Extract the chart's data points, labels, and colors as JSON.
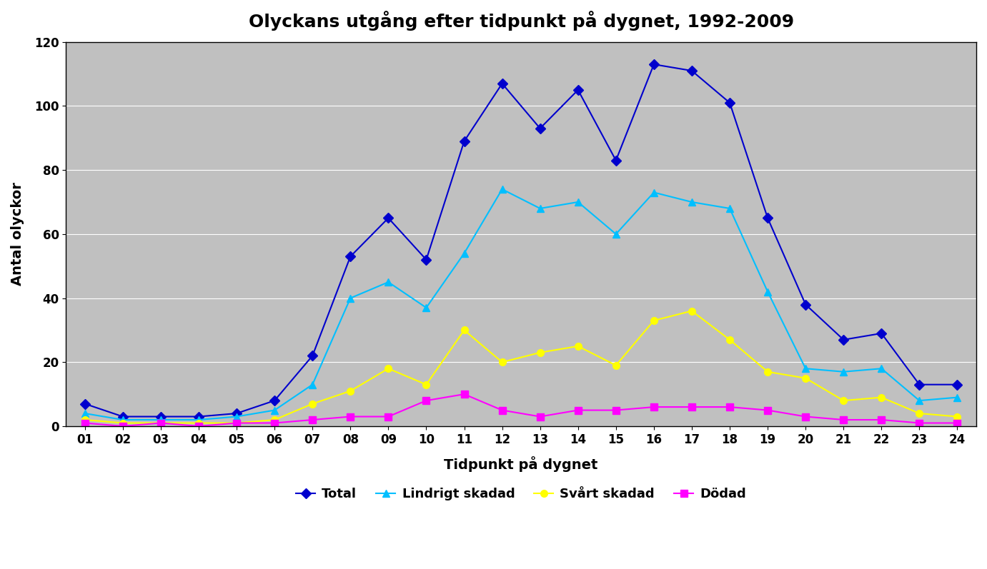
{
  "title": "Olyckans utgång efter tidpunkt på dygnet, 1992-2009",
  "xlabel": "Tidpunkt på dygnet",
  "ylabel": "Antal olyckor",
  "x_labels": [
    "01",
    "02",
    "03",
    "04",
    "05",
    "06",
    "07",
    "08",
    "09",
    "10",
    "11",
    "12",
    "13",
    "14",
    "15",
    "16",
    "17",
    "18",
    "19",
    "20",
    "21",
    "22",
    "23",
    "24"
  ],
  "total": [
    7,
    3,
    3,
    3,
    4,
    8,
    22,
    53,
    65,
    52,
    89,
    107,
    93,
    105,
    83,
    113,
    111,
    101,
    65,
    38,
    27,
    29,
    13,
    13
  ],
  "lindrigt": [
    4,
    2,
    2,
    2,
    3,
    5,
    13,
    40,
    45,
    37,
    54,
    74,
    68,
    70,
    60,
    73,
    70,
    68,
    42,
    18,
    17,
    18,
    8,
    9
  ],
  "svart": [
    2,
    1,
    1,
    1,
    1,
    2,
    7,
    11,
    18,
    13,
    30,
    20,
    23,
    25,
    19,
    33,
    36,
    27,
    17,
    15,
    8,
    9,
    4,
    3
  ],
  "dodad": [
    1,
    0,
    1,
    0,
    1,
    1,
    2,
    3,
    3,
    8,
    10,
    5,
    3,
    5,
    5,
    6,
    6,
    6,
    5,
    3,
    2,
    2,
    1,
    1
  ],
  "total_color": "#0000CD",
  "lindrigt_color": "#00BFFF",
  "svart_color": "#FFFF00",
  "dodad_color": "#FF00FF",
  "bg_color": "#C0C0C0",
  "ylim": [
    0,
    120
  ],
  "yticks": [
    0,
    20,
    40,
    60,
    80,
    100,
    120
  ],
  "title_fontsize": 18,
  "axis_label_fontsize": 14,
  "tick_fontsize": 12,
  "legend_fontsize": 13
}
